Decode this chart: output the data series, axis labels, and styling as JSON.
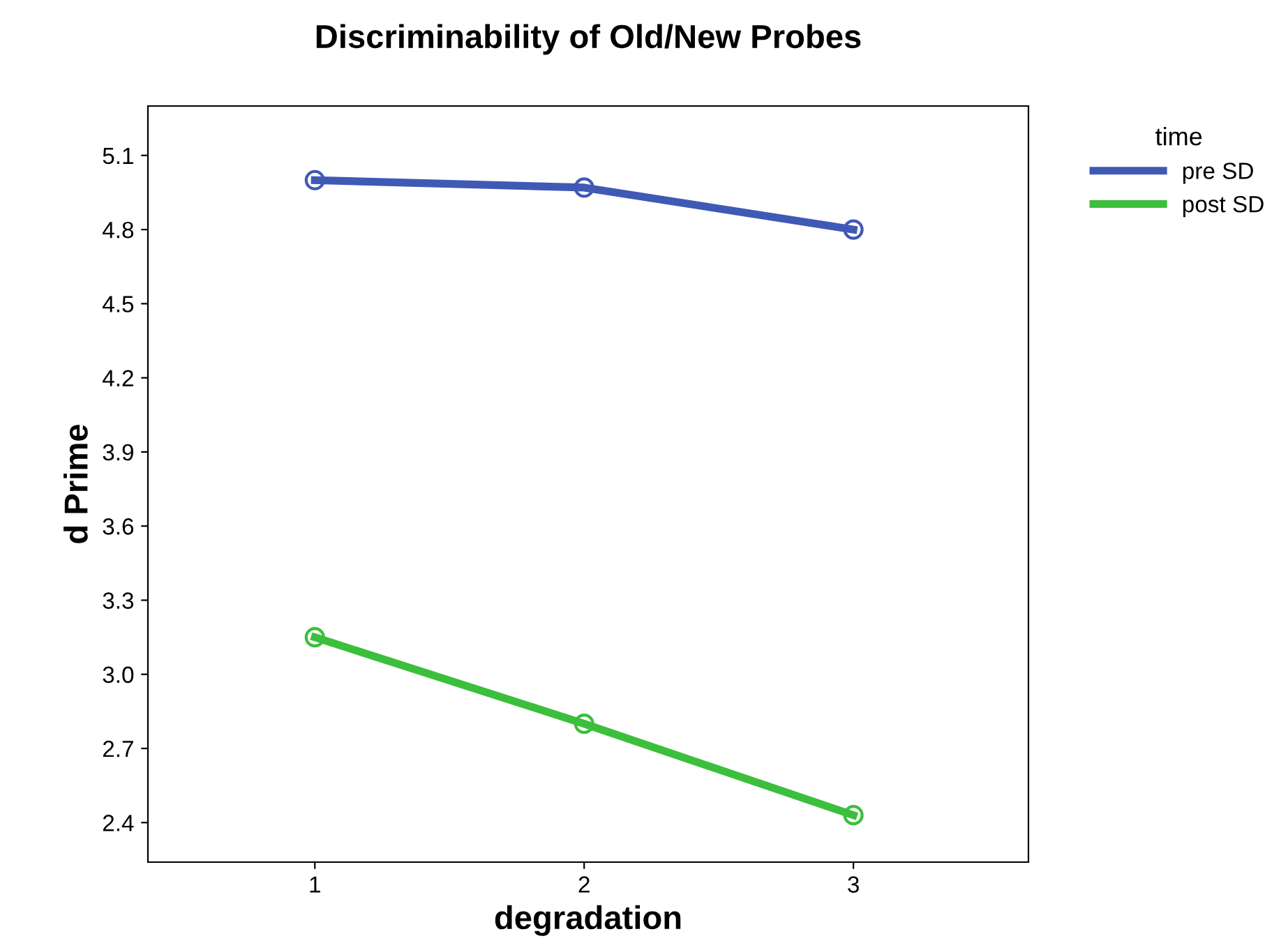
{
  "chart_data": {
    "type": "line",
    "title": "Discriminability of Old/New Probes",
    "xlabel": "degradation",
    "ylabel": "d Prime",
    "legend_title": "time",
    "categories": [
      "1",
      "2",
      "3"
    ],
    "series": [
      {
        "name": "pre SD",
        "color": "#4059b5",
        "values": [
          5.0,
          4.97,
          4.8
        ]
      },
      {
        "name": "post SD",
        "color": "#3cbf3c",
        "values": [
          3.15,
          2.8,
          2.43
        ]
      }
    ],
    "ylim": [
      2.24,
      5.3
    ],
    "yticks": [
      2.4,
      2.7,
      {
        "value": 3,
        "label": "3.0"
      },
      3.3,
      3.6,
      3.9,
      4.2,
      4.5,
      4.8,
      5.1
    ],
    "marker": "circle",
    "line_style": "solid",
    "legend": "top right",
    "grid": false
  }
}
